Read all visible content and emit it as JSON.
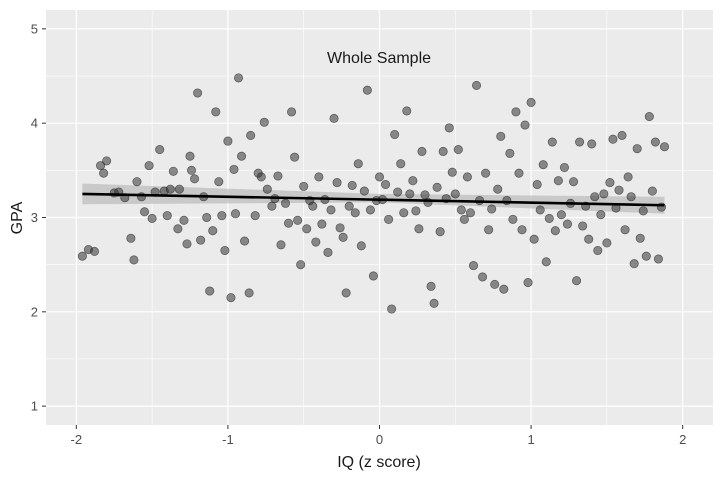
{
  "chart_data": {
    "type": "scatter",
    "title": "Whole Sample",
    "xlabel": "IQ (z score)",
    "ylabel": "GPA",
    "xlim": [
      -2.2,
      2.2
    ],
    "ylim": [
      0.8,
      5.2
    ],
    "x_ticks": [
      -2,
      -1,
      0,
      1,
      2
    ],
    "x_tick_labels": [
      "-2",
      "-1",
      "0",
      "1",
      "2"
    ],
    "y_ticks": [
      1,
      2,
      3,
      4,
      5
    ],
    "y_tick_labels": [
      "1",
      "2",
      "3",
      "4",
      "5"
    ],
    "grid": true,
    "legend": "none",
    "colors": {
      "panel": "#ebebeb",
      "grid_major": "#ffffff",
      "points": "#333333",
      "fit_line": "#000000",
      "confidence_band": "#bdbdbd"
    },
    "fit_line": {
      "x": [
        -1.96,
        1.88
      ],
      "y": [
        3.25,
        3.13
      ]
    },
    "confidence_band": {
      "x": [
        -1.96,
        0,
        1.88
      ],
      "lower": [
        3.14,
        3.16,
        3.04
      ],
      "upper": [
        3.36,
        3.25,
        3.22
      ]
    },
    "points": [
      [
        -1.96,
        2.59
      ],
      [
        -1.92,
        2.66
      ],
      [
        -1.88,
        2.64
      ],
      [
        -1.84,
        3.55
      ],
      [
        -1.82,
        3.47
      ],
      [
        -1.8,
        3.6
      ],
      [
        -1.75,
        3.26
      ],
      [
        -1.72,
        3.27
      ],
      [
        -1.68,
        3.21
      ],
      [
        -1.64,
        2.78
      ],
      [
        -1.62,
        2.55
      ],
      [
        -1.6,
        3.38
      ],
      [
        -1.57,
        3.22
      ],
      [
        -1.55,
        3.06
      ],
      [
        -1.52,
        3.55
      ],
      [
        -1.5,
        2.99
      ],
      [
        -1.48,
        3.27
      ],
      [
        -1.45,
        3.72
      ],
      [
        -1.42,
        3.28
      ],
      [
        -1.4,
        3.02
      ],
      [
        -1.38,
        3.3
      ],
      [
        -1.36,
        3.49
      ],
      [
        -1.33,
        2.88
      ],
      [
        -1.32,
        3.3
      ],
      [
        -1.29,
        2.97
      ],
      [
        -1.27,
        2.72
      ],
      [
        -1.25,
        3.65
      ],
      [
        -1.24,
        3.5
      ],
      [
        -1.22,
        3.41
      ],
      [
        -1.2,
        4.32
      ],
      [
        -1.18,
        2.76
      ],
      [
        -1.16,
        3.22
      ],
      [
        -1.14,
        3.0
      ],
      [
        -1.12,
        2.22
      ],
      [
        -1.1,
        2.86
      ],
      [
        -1.08,
        4.12
      ],
      [
        -1.06,
        3.38
      ],
      [
        -1.04,
        3.02
      ],
      [
        -1.02,
        2.65
      ],
      [
        -1.0,
        3.81
      ],
      [
        -0.98,
        2.15
      ],
      [
        -0.96,
        3.51
      ],
      [
        -0.95,
        3.04
      ],
      [
        -0.93,
        4.48
      ],
      [
        -0.91,
        3.65
      ],
      [
        -0.89,
        2.75
      ],
      [
        -0.86,
        2.2
      ],
      [
        -0.85,
        3.87
      ],
      [
        -0.82,
        3.02
      ],
      [
        -0.8,
        3.47
      ],
      [
        -0.78,
        3.43
      ],
      [
        -0.76,
        4.01
      ],
      [
        -0.74,
        3.3
      ],
      [
        -0.71,
        3.12
      ],
      [
        -0.69,
        3.2
      ],
      [
        -0.67,
        3.44
      ],
      [
        -0.65,
        2.71
      ],
      [
        -0.62,
        3.15
      ],
      [
        -0.6,
        2.94
      ],
      [
        -0.58,
        4.12
      ],
      [
        -0.56,
        3.64
      ],
      [
        -0.54,
        2.97
      ],
      [
        -0.52,
        2.5
      ],
      [
        -0.5,
        3.33
      ],
      [
        -0.48,
        2.88
      ],
      [
        -0.46,
        3.18
      ],
      [
        -0.44,
        3.12
      ],
      [
        -0.42,
        2.74
      ],
      [
        -0.4,
        3.43
      ],
      [
        -0.38,
        2.93
      ],
      [
        -0.36,
        3.19
      ],
      [
        -0.34,
        2.63
      ],
      [
        -0.32,
        3.08
      ],
      [
        -0.3,
        4.05
      ],
      [
        -0.28,
        3.37
      ],
      [
        -0.26,
        2.89
      ],
      [
        -0.24,
        2.79
      ],
      [
        -0.22,
        2.2
      ],
      [
        -0.2,
        3.12
      ],
      [
        -0.18,
        3.34
      ],
      [
        -0.16,
        3.05
      ],
      [
        -0.14,
        3.57
      ],
      [
        -0.12,
        2.7
      ],
      [
        -0.1,
        3.28
      ],
      [
        -0.08,
        4.35
      ],
      [
        -0.06,
        3.08
      ],
      [
        -0.04,
        2.38
      ],
      [
        -0.02,
        3.18
      ],
      [
        0.0,
        3.43
      ],
      [
        0.02,
        3.19
      ],
      [
        0.04,
        3.35
      ],
      [
        0.06,
        2.98
      ],
      [
        0.08,
        2.03
      ],
      [
        0.1,
        3.88
      ],
      [
        0.12,
        3.27
      ],
      [
        0.14,
        3.57
      ],
      [
        0.16,
        3.05
      ],
      [
        0.18,
        4.13
      ],
      [
        0.2,
        3.25
      ],
      [
        0.22,
        3.39
      ],
      [
        0.24,
        3.07
      ],
      [
        0.26,
        2.88
      ],
      [
        0.28,
        3.7
      ],
      [
        0.3,
        3.24
      ],
      [
        0.32,
        3.16
      ],
      [
        0.34,
        2.27
      ],
      [
        0.36,
        2.09
      ],
      [
        0.38,
        3.32
      ],
      [
        0.4,
        2.85
      ],
      [
        0.42,
        3.7
      ],
      [
        0.44,
        3.2
      ],
      [
        0.46,
        3.95
      ],
      [
        0.48,
        3.48
      ],
      [
        0.5,
        3.25
      ],
      [
        0.52,
        3.72
      ],
      [
        0.54,
        3.08
      ],
      [
        0.56,
        2.98
      ],
      [
        0.58,
        3.43
      ],
      [
        0.6,
        3.05
      ],
      [
        0.62,
        2.49
      ],
      [
        0.64,
        4.4
      ],
      [
        0.66,
        3.18
      ],
      [
        0.68,
        2.37
      ],
      [
        0.7,
        3.47
      ],
      [
        0.72,
        2.87
      ],
      [
        0.74,
        3.09
      ],
      [
        0.76,
        2.29
      ],
      [
        0.78,
        3.3
      ],
      [
        0.8,
        3.86
      ],
      [
        0.82,
        2.24
      ],
      [
        0.84,
        3.18
      ],
      [
        0.86,
        3.68
      ],
      [
        0.88,
        2.98
      ],
      [
        0.9,
        4.12
      ],
      [
        0.92,
        3.47
      ],
      [
        0.94,
        2.87
      ],
      [
        0.96,
        3.98
      ],
      [
        0.98,
        2.31
      ],
      [
        1.0,
        4.22
      ],
      [
        1.02,
        2.77
      ],
      [
        1.04,
        3.35
      ],
      [
        1.06,
        3.08
      ],
      [
        1.08,
        3.56
      ],
      [
        1.1,
        2.53
      ],
      [
        1.12,
        2.99
      ],
      [
        1.14,
        3.8
      ],
      [
        1.16,
        2.86
      ],
      [
        1.18,
        3.39
      ],
      [
        1.2,
        3.03
      ],
      [
        1.22,
        3.53
      ],
      [
        1.24,
        2.93
      ],
      [
        1.26,
        3.15
      ],
      [
        1.28,
        3.38
      ],
      [
        1.3,
        2.33
      ],
      [
        1.32,
        3.8
      ],
      [
        1.34,
        2.91
      ],
      [
        1.36,
        3.12
      ],
      [
        1.38,
        2.77
      ],
      [
        1.4,
        3.78
      ],
      [
        1.42,
        3.22
      ],
      [
        1.44,
        2.65
      ],
      [
        1.46,
        3.03
      ],
      [
        1.48,
        3.25
      ],
      [
        1.5,
        2.73
      ],
      [
        1.52,
        3.37
      ],
      [
        1.54,
        3.83
      ],
      [
        1.56,
        3.1
      ],
      [
        1.58,
        3.29
      ],
      [
        1.6,
        3.87
      ],
      [
        1.62,
        2.87
      ],
      [
        1.64,
        3.43
      ],
      [
        1.66,
        3.22
      ],
      [
        1.68,
        2.51
      ],
      [
        1.7,
        3.73
      ],
      [
        1.72,
        2.78
      ],
      [
        1.74,
        3.07
      ],
      [
        1.76,
        2.59
      ],
      [
        1.78,
        4.07
      ],
      [
        1.8,
        3.28
      ],
      [
        1.82,
        3.8
      ],
      [
        1.84,
        2.56
      ],
      [
        1.86,
        3.11
      ],
      [
        1.88,
        3.75
      ]
    ]
  }
}
